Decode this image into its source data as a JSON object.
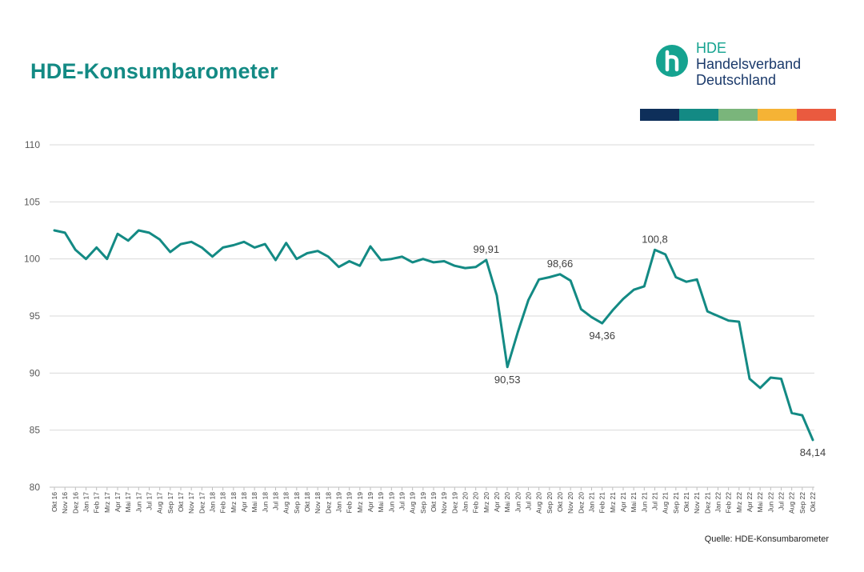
{
  "title": "HDE-Konsumbarometer",
  "logo": {
    "line1": "HDE",
    "line2": "Handelsverband",
    "line3": "Deutschland"
  },
  "brand_colors": [
    "#0e2f5a",
    "#138a84",
    "#7ab57b",
    "#f5b335",
    "#ea5a3f"
  ],
  "source": "Quelle: HDE-Konsumbarometer",
  "chart_data": {
    "type": "line",
    "title": "",
    "xlabel": "",
    "ylabel": "",
    "ylim": [
      80,
      110
    ],
    "yticks": [
      80,
      85,
      90,
      95,
      100,
      105,
      110
    ],
    "grid": true,
    "line_color": "#138a84",
    "x": [
      "Okt 16",
      "Nov 16",
      "Dez 16",
      "Jan 17",
      "Feb 17",
      "Mrz 17",
      "Apr 17",
      "Mai 17",
      "Jun 17",
      "Jul 17",
      "Aug 17",
      "Sep 17",
      "Okt 17",
      "Nov 17",
      "Dez 17",
      "Jan 18",
      "Feb 18",
      "Mrz 18",
      "Apr 18",
      "Mai 18",
      "Jun 18",
      "Jul 18",
      "Aug 18",
      "Sep 18",
      "Okt 18",
      "Nov 18",
      "Dez 18",
      "Jan 19",
      "Feb 19",
      "Mrz 19",
      "Apr 19",
      "Mai 19",
      "Jun 19",
      "Jul 19",
      "Aug 19",
      "Sep 19",
      "Okt 19",
      "Nov 19",
      "Dez 19",
      "Jan 20",
      "Feb 20",
      "Mrz 20",
      "Apr 20",
      "Mai 20",
      "Jun 20",
      "Jul 20",
      "Aug 20",
      "Sep 20",
      "Okt 20",
      "Nov 20",
      "Dez 20",
      "Jan 21",
      "Feb 21",
      "Mrz 21",
      "Apr 21",
      "Mai 21",
      "Jun 21",
      "Jul 21",
      "Aug 21",
      "Sep 21",
      "Okt 21",
      "Nov 21",
      "Dez 21",
      "Jan 22",
      "Feb 22",
      "Mrz 22",
      "Apr 22",
      "Mai 22",
      "Jun 22",
      "Jul 22",
      "Aug 22",
      "Sep 22",
      "Okt 22"
    ],
    "series": [
      {
        "values": [
          102.5,
          102.3,
          100.8,
          100.0,
          101.0,
          100.0,
          102.2,
          101.6,
          102.5,
          102.3,
          101.7,
          100.6,
          101.3,
          101.5,
          101.0,
          100.2,
          101.0,
          101.2,
          101.5,
          101.0,
          101.3,
          99.9,
          101.4,
          100.0,
          100.5,
          100.7,
          100.2,
          99.3,
          99.8,
          99.4,
          101.1,
          99.9,
          100.0,
          100.2,
          99.7,
          100.0,
          99.7,
          99.8,
          99.4,
          99.2,
          99.3,
          99.91,
          96.8,
          90.53,
          93.6,
          96.4,
          98.2,
          98.4,
          98.66,
          98.1,
          95.6,
          94.9,
          94.36,
          95.5,
          96.5,
          97.3,
          97.6,
          100.8,
          100.4,
          98.4,
          98.0,
          98.2,
          95.4,
          95.0,
          94.6,
          94.5,
          89.5,
          88.7,
          89.6,
          89.5,
          86.5,
          86.3,
          84.14
        ]
      }
    ],
    "annotations": [
      {
        "x": "Mrz 20",
        "text": "99,91",
        "pos": "above"
      },
      {
        "x": "Mai 20",
        "text": "90,53",
        "pos": "below"
      },
      {
        "x": "Okt 20",
        "text": "98,66",
        "pos": "above"
      },
      {
        "x": "Feb 21",
        "text": "94,36",
        "pos": "below"
      },
      {
        "x": "Jul 21",
        "text": "100,8",
        "pos": "above"
      },
      {
        "x": "Okt 22",
        "text": "84,14",
        "pos": "below"
      }
    ]
  }
}
